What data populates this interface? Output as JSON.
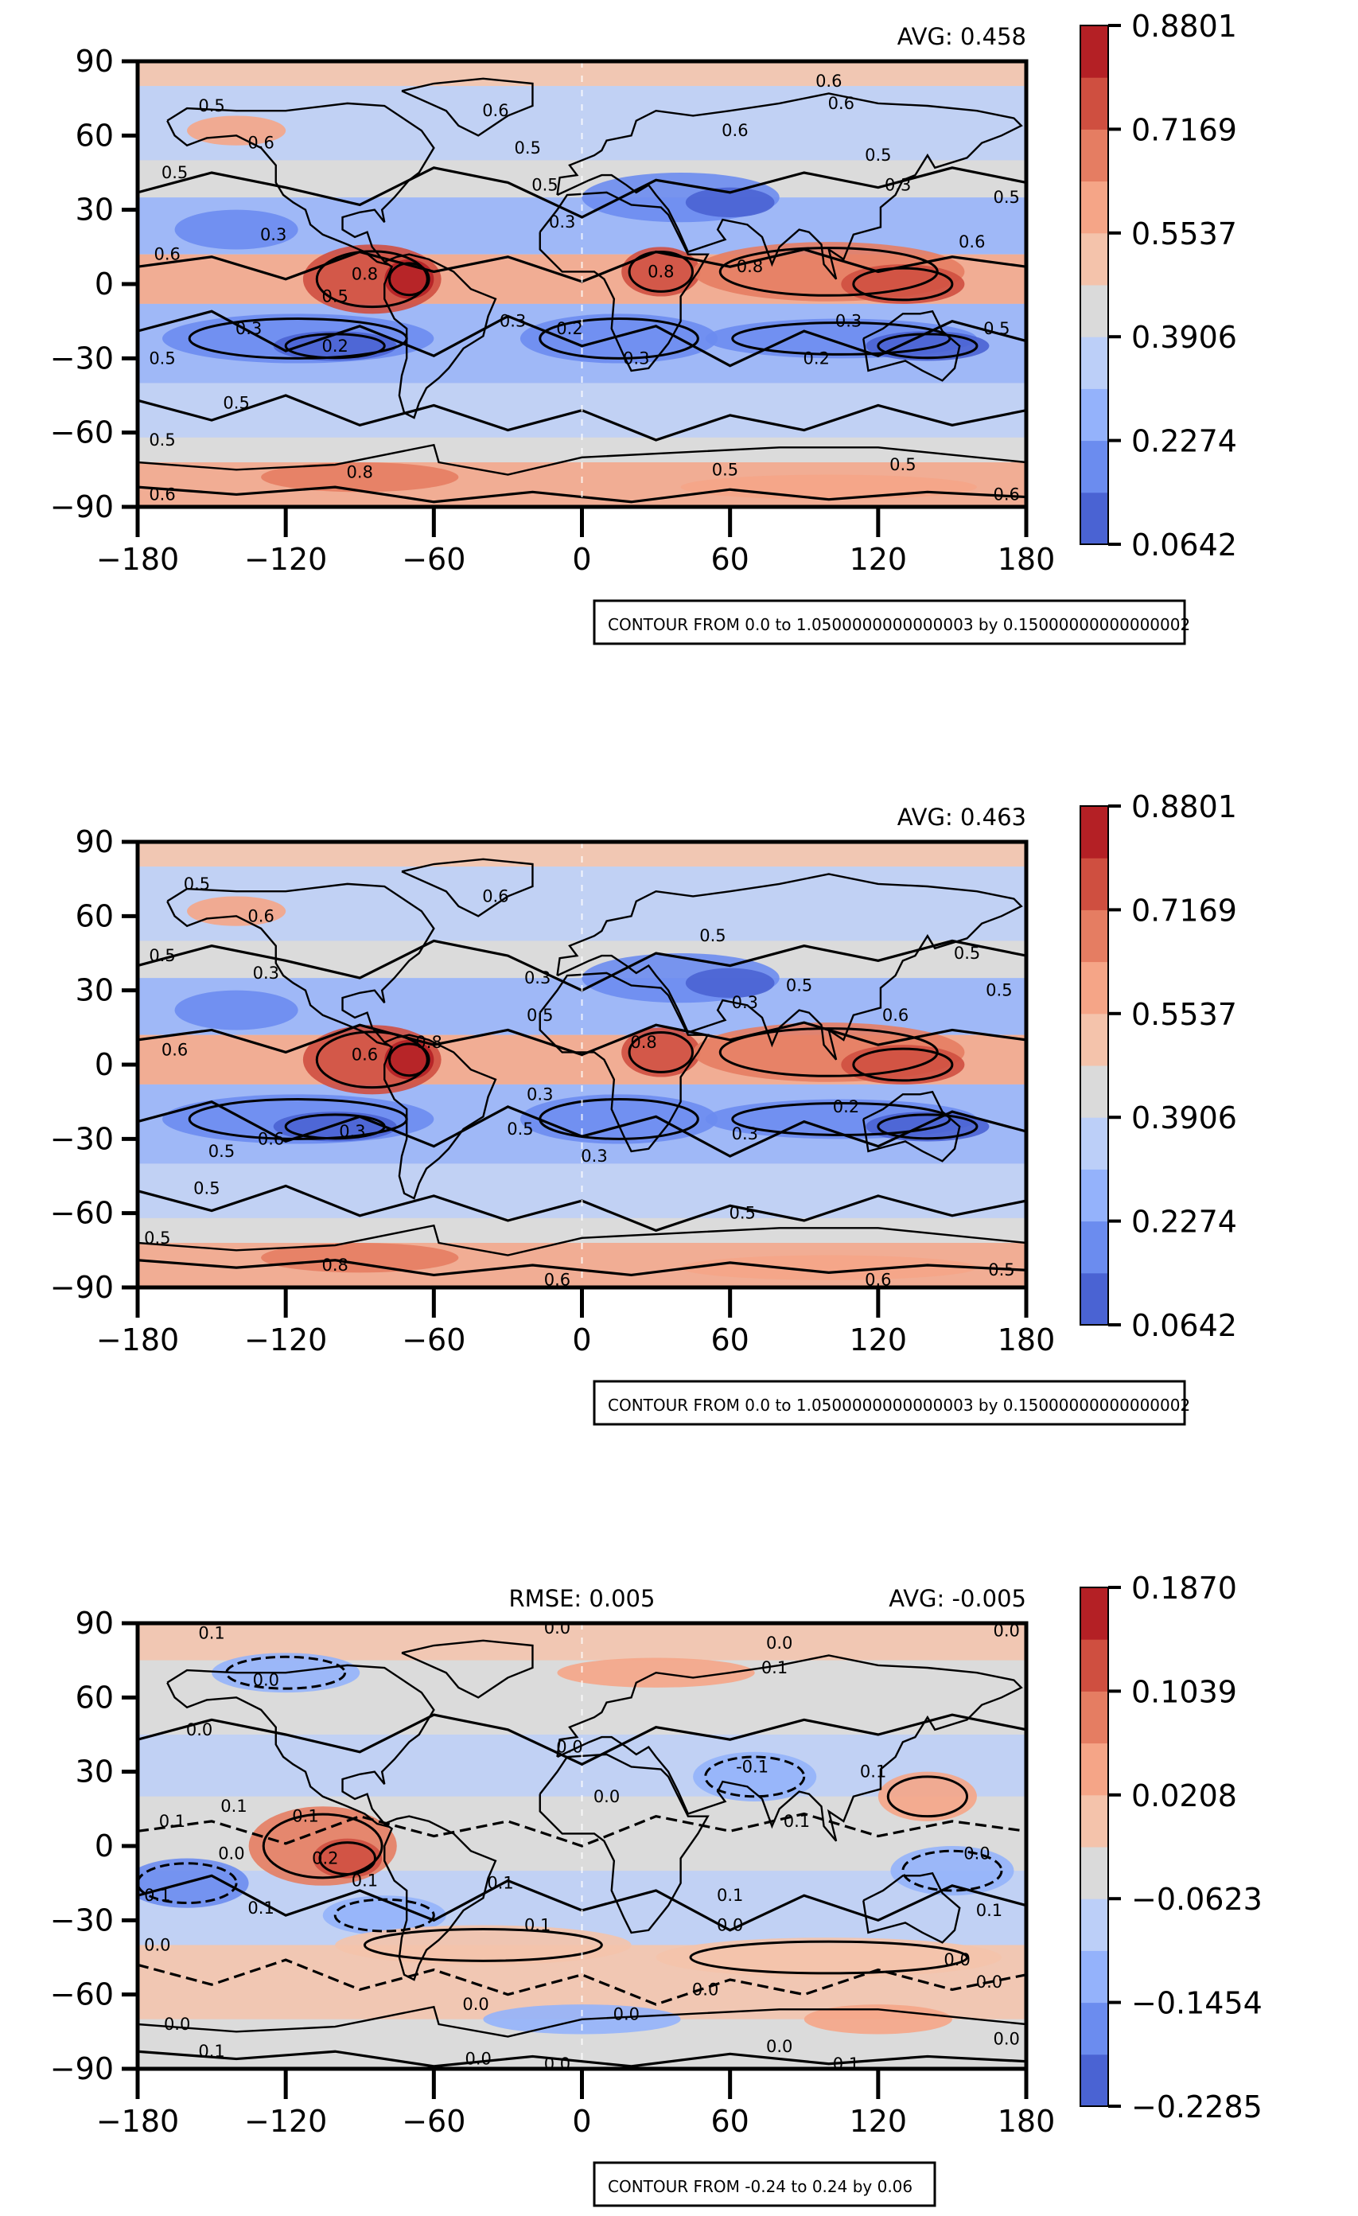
{
  "chart_data": [
    {
      "type": "heatmap",
      "title": "",
      "avg_label": "AVG: 0.458",
      "rmse_label": "",
      "x_ticks": [
        -180,
        -120,
        -60,
        0,
        60,
        120,
        180
      ],
      "y_ticks": [
        -90,
        -60,
        -30,
        0,
        30,
        60,
        90
      ],
      "xlim": [
        -180,
        180
      ],
      "ylim": [
        -90,
        90
      ],
      "colorbar_ticks": [
        "0.0642",
        "0.2274",
        "0.3906",
        "0.5537",
        "0.7169",
        "0.8801"
      ],
      "colorbar_colors": [
        "#4a63d3",
        "#6b8cef",
        "#94b2fb",
        "#bccff8",
        "#dadada",
        "#f4c3ab",
        "#f5a587",
        "#e57d62",
        "#cf4f40",
        "#b42025"
      ],
      "contour_note": "CONTOUR FROM 0.0 to 1.0500000000000003 by 0.15000000000000002",
      "contour_labels": [
        {
          "text": "0.5",
          "lon": -150,
          "lat": 72
        },
        {
          "text": "0.6",
          "lon": -130,
          "lat": 57
        },
        {
          "text": "0.5",
          "lon": -165,
          "lat": 45
        },
        {
          "text": "0.3",
          "lon": -125,
          "lat": 20
        },
        {
          "text": "0.6",
          "lon": -168,
          "lat": 12
        },
        {
          "text": "0.8",
          "lon": -88,
          "lat": 4
        },
        {
          "text": "0.5",
          "lon": -100,
          "lat": -5
        },
        {
          "text": "0.3",
          "lon": -135,
          "lat": -18
        },
        {
          "text": "0.2",
          "lon": -100,
          "lat": -25
        },
        {
          "text": "0.5",
          "lon": -170,
          "lat": -30
        },
        {
          "text": "0.5",
          "lon": -140,
          "lat": -48
        },
        {
          "text": "0.5",
          "lon": -170,
          "lat": -63
        },
        {
          "text": "0.8",
          "lon": -90,
          "lat": -76
        },
        {
          "text": "0.6",
          "lon": -170,
          "lat": -85
        },
        {
          "text": "0.6",
          "lon": -35,
          "lat": 70
        },
        {
          "text": "0.5",
          "lon": -22,
          "lat": 55
        },
        {
          "text": "0.5",
          "lon": -15,
          "lat": 40
        },
        {
          "text": "0.3",
          "lon": -8,
          "lat": 25
        },
        {
          "text": "0.3",
          "lon": -28,
          "lat": -15
        },
        {
          "text": "0.2",
          "lon": -5,
          "lat": -18
        },
        {
          "text": "0.3",
          "lon": 22,
          "lat": -30
        },
        {
          "text": "0.8",
          "lon": 32,
          "lat": 5
        },
        {
          "text": "0.6",
          "lon": 100,
          "lat": 82
        },
        {
          "text": "0.6",
          "lon": 105,
          "lat": 73
        },
        {
          "text": "0.6",
          "lon": 62,
          "lat": 62
        },
        {
          "text": "0.5",
          "lon": 120,
          "lat": 52
        },
        {
          "text": "0.3",
          "lon": 128,
          "lat": 40
        },
        {
          "text": "0.8",
          "lon": 68,
          "lat": 7
        },
        {
          "text": "0.6",
          "lon": 158,
          "lat": 17
        },
        {
          "text": "0.3",
          "lon": 108,
          "lat": -15
        },
        {
          "text": "0.2",
          "lon": 95,
          "lat": -30
        },
        {
          "text": "0.5",
          "lon": 172,
          "lat": 35
        },
        {
          "text": "0.5",
          "lon": 168,
          "lat": -18
        },
        {
          "text": "0.5",
          "lon": 58,
          "lat": -75
        },
        {
          "text": "0.5",
          "lon": 130,
          "lat": -73
        },
        {
          "text": "0.6",
          "lon": 172,
          "lat": -85
        }
      ]
    },
    {
      "type": "heatmap",
      "title": "",
      "avg_label": "AVG: 0.463",
      "rmse_label": "",
      "x_ticks": [
        -180,
        -120,
        -60,
        0,
        60,
        120,
        180
      ],
      "y_ticks": [
        -90,
        -60,
        -30,
        0,
        30,
        60,
        90
      ],
      "xlim": [
        -180,
        180
      ],
      "ylim": [
        -90,
        90
      ],
      "colorbar_ticks": [
        "0.0642",
        "0.2274",
        "0.3906",
        "0.5537",
        "0.7169",
        "0.8801"
      ],
      "colorbar_colors": [
        "#4a63d3",
        "#6b8cef",
        "#94b2fb",
        "#bccff8",
        "#dadada",
        "#f4c3ab",
        "#f5a587",
        "#e57d62",
        "#cf4f40",
        "#b42025"
      ],
      "contour_note": "CONTOUR FROM 0.0 to 1.0500000000000003 by 0.15000000000000002",
      "contour_labels": [
        {
          "text": "0.5",
          "lon": -156,
          "lat": 73
        },
        {
          "text": "0.6",
          "lon": -130,
          "lat": 60
        },
        {
          "text": "0.5",
          "lon": -170,
          "lat": 44
        },
        {
          "text": "0.3",
          "lon": -128,
          "lat": 37
        },
        {
          "text": "0.6",
          "lon": -165,
          "lat": 6
        },
        {
          "text": "0.6",
          "lon": -88,
          "lat": 4
        },
        {
          "text": "0.8",
          "lon": -62,
          "lat": 9
        },
        {
          "text": "0.3",
          "lon": -93,
          "lat": -27
        },
        {
          "text": "0.5",
          "lon": -146,
          "lat": -35
        },
        {
          "text": "0.6",
          "lon": -126,
          "lat": -30
        },
        {
          "text": "0.5",
          "lon": -152,
          "lat": -50
        },
        {
          "text": "0.5",
          "lon": -172,
          "lat": -70
        },
        {
          "text": "0.8",
          "lon": -100,
          "lat": -81
        },
        {
          "text": "0.6",
          "lon": -35,
          "lat": 68
        },
        {
          "text": "0.3",
          "lon": -18,
          "lat": 35
        },
        {
          "text": "0.5",
          "lon": -17,
          "lat": 20
        },
        {
          "text": "0.3",
          "lon": -17,
          "lat": -12
        },
        {
          "text": "0.5",
          "lon": -25,
          "lat": -26
        },
        {
          "text": "0.3",
          "lon": 5,
          "lat": -37
        },
        {
          "text": "0.8",
          "lon": 25,
          "lat": 9
        },
        {
          "text": "0.5",
          "lon": 53,
          "lat": 52
        },
        {
          "text": "0.3",
          "lon": 66,
          "lat": 25
        },
        {
          "text": "0.5",
          "lon": 88,
          "lat": 32
        },
        {
          "text": "0.6",
          "lon": 127,
          "lat": 20
        },
        {
          "text": "0.2",
          "lon": 107,
          "lat": -17
        },
        {
          "text": "0.3",
          "lon": 66,
          "lat": -28
        },
        {
          "text": "0.5",
          "lon": 156,
          "lat": 45
        },
        {
          "text": "0.5",
          "lon": 169,
          "lat": 30
        },
        {
          "text": "0.5",
          "lon": 65,
          "lat": -60
        },
        {
          "text": "0.6",
          "lon": 120,
          "lat": -87
        },
        {
          "text": "0.6",
          "lon": -10,
          "lat": -87
        },
        {
          "text": "0.5",
          "lon": 170,
          "lat": -83
        }
      ]
    },
    {
      "type": "heatmap",
      "title": "",
      "avg_label": "AVG: -0.005",
      "rmse_label": "RMSE: 0.005",
      "x_ticks": [
        -180,
        -120,
        -60,
        0,
        60,
        120,
        180
      ],
      "y_ticks": [
        -90,
        -60,
        -30,
        0,
        30,
        60,
        90
      ],
      "xlim": [
        -180,
        180
      ],
      "ylim": [
        -90,
        90
      ],
      "colorbar_ticks": [
        "−0.2285",
        "−0.1454",
        "−0.0623",
        "0.0208",
        "0.1039",
        "0.1870"
      ],
      "colorbar_colors": [
        "#4a63d3",
        "#6b8cef",
        "#94b2fb",
        "#bccff8",
        "#dadada",
        "#f4c3ab",
        "#f5a587",
        "#e57d62",
        "#cf4f40",
        "#b42025"
      ],
      "contour_note": "CONTOUR FROM -0.24 to 0.24 by 0.06",
      "contour_labels": [
        {
          "text": "0.1",
          "lon": -150,
          "lat": 86
        },
        {
          "text": "0.0",
          "lon": -10,
          "lat": 88
        },
        {
          "text": "0.0",
          "lon": 80,
          "lat": 82
        },
        {
          "text": "0.1",
          "lon": 78,
          "lat": 72
        },
        {
          "text": "0.0",
          "lon": 172,
          "lat": 87
        },
        {
          "text": "0.0",
          "lon": -128,
          "lat": 67
        },
        {
          "text": "0.0",
          "lon": -155,
          "lat": 47
        },
        {
          "text": "0.1",
          "lon": -141,
          "lat": 16
        },
        {
          "text": "0.1",
          "lon": -112,
          "lat": 12
        },
        {
          "text": "0.1",
          "lon": -166,
          "lat": 10
        },
        {
          "text": "0.0",
          "lon": -142,
          "lat": -3
        },
        {
          "text": "0.2",
          "lon": -104,
          "lat": -5
        },
        {
          "text": "0.1",
          "lon": -88,
          "lat": -14
        },
        {
          "text": "0.1",
          "lon": -130,
          "lat": -25
        },
        {
          "text": "0.1",
          "lon": -172,
          "lat": -20
        },
        {
          "text": "0.0",
          "lon": -172,
          "lat": -40
        },
        {
          "text": "0.0",
          "lon": -164,
          "lat": -72
        },
        {
          "text": "0.1",
          "lon": -150,
          "lat": -83
        },
        {
          "text": "0.0",
          "lon": -43,
          "lat": -64
        },
        {
          "text": "0.0",
          "lon": -42,
          "lat": -86
        },
        {
          "text": "0.0",
          "lon": -10,
          "lat": -88
        },
        {
          "text": "0.0",
          "lon": 18,
          "lat": -68
        },
        {
          "text": "0.0",
          "lon": 50,
          "lat": -58
        },
        {
          "text": "0.0",
          "lon": 80,
          "lat": -81
        },
        {
          "text": "0.1",
          "lon": 107,
          "lat": -88
        },
        {
          "text": "0.0",
          "lon": 172,
          "lat": -78
        },
        {
          "text": "0.0",
          "lon": 165,
          "lat": -55
        },
        {
          "text": "0.0",
          "lon": 152,
          "lat": -46
        },
        {
          "text": "0.1",
          "lon": 165,
          "lat": -26
        },
        {
          "text": "0.0",
          "lon": 60,
          "lat": -32
        },
        {
          "text": "0.1",
          "lon": -18,
          "lat": -32
        },
        {
          "text": "0.1",
          "lon": 60,
          "lat": -20
        },
        {
          "text": "0.0",
          "lon": 160,
          "lat": -3
        },
        {
          "text": "0.1",
          "lon": 87,
          "lat": 10
        },
        {
          "text": "0.1",
          "lon": 118,
          "lat": 30
        },
        {
          "text": "-0.1",
          "lon": 69,
          "lat": 32
        },
        {
          "text": "0.0",
          "lon": 10,
          "lat": 20
        },
        {
          "text": "0.1",
          "lon": -33,
          "lat": -15
        },
        {
          "text": "0.0",
          "lon": -5,
          "lat": 40
        }
      ]
    }
  ]
}
